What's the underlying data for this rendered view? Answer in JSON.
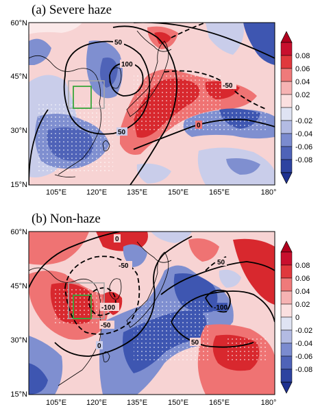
{
  "panels": [
    {
      "title": "(a) Severe haze",
      "contour_labels": [
        "50",
        "100",
        "-50",
        "50",
        "0"
      ]
    },
    {
      "title": "(b) Non-haze",
      "contour_labels": [
        "0",
        "-50",
        "-100",
        "-50",
        "0",
        "50",
        "-100",
        "50"
      ]
    }
  ],
  "map": {
    "lon_ticks": [
      "105°E",
      "120°E",
      "135°E",
      "150°E",
      "165°E",
      "180°"
    ],
    "lat_ticks": [
      "60°N",
      "45°N",
      "30°N",
      "15°N"
    ]
  },
  "colorbar": {
    "labels": [
      "0.08",
      "0.06",
      "0.04",
      "0.02",
      "0",
      "-0.02",
      "-0.04",
      "-0.06",
      "-0.08"
    ],
    "colors": [
      "#c8102e",
      "#e0393d",
      "#ef7a7a",
      "#f6b3b3",
      "#fbe0e0",
      "#dfe3f3",
      "#b3bbe3",
      "#7b8bcf",
      "#4f63b8",
      "#2d43a0"
    ]
  },
  "colors": {
    "positive_dark": "#d8282e",
    "positive_mid": "#ef7373",
    "positive_light": "#f7c1c1",
    "neutral": "#fbe9e9",
    "negative_light": "#c9cdea",
    "negative_mid": "#7f8fd0",
    "negative_dark": "#3e56b1",
    "box_green": "#38a63a",
    "box_grey": "#a5a5a5"
  }
}
